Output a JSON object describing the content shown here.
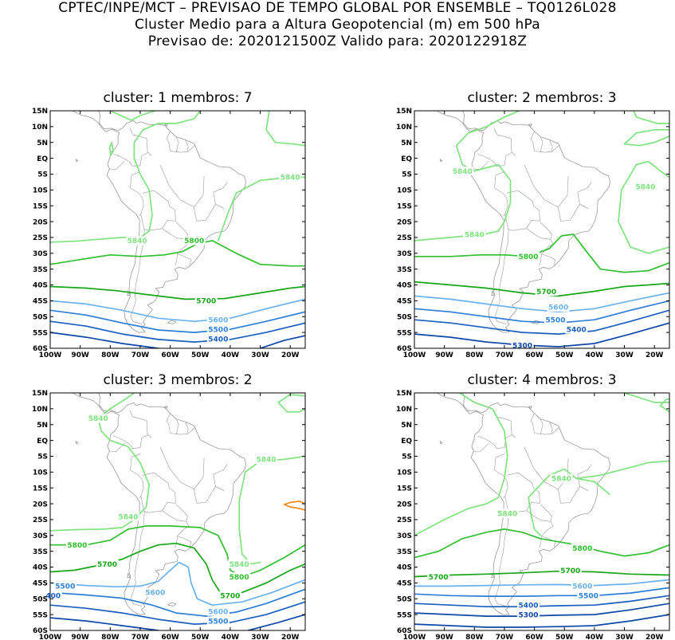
{
  "header": {
    "line1": "CPTEC/INPE/MCT – PREVISAO DE TEMPO GLOBAL POR ENSEMBLE – TQ0126L028",
    "line2": "Cluster Medio para a Altura Geopotencial (m) em 500 hPa",
    "line3": "Previsao de: 2020121500Z   Valido para: 2020122918Z"
  },
  "colors": {
    "c5840": "#7fe37f",
    "c5800": "#30bf30",
    "c5700": "#17a617",
    "c5600": "#6ab2ee",
    "c5500": "#2d7ed6",
    "c5400": "#1a5fc0",
    "c5300": "#0e47a8",
    "c5900": "#f08a1e",
    "land": "#9a9a9a"
  },
  "chart_data": [
    {
      "type": "contour",
      "title": "cluster: 1   membros: 7",
      "x_ticks": [
        "100W",
        "90W",
        "80W",
        "70W",
        "60W",
        "50W",
        "40W",
        "30W",
        "20W"
      ],
      "y_ticks": [
        "15N",
        "10N",
        "5N",
        "EQ",
        "5S",
        "10S",
        "15S",
        "20S",
        "25S",
        "30S",
        "35S",
        "40S",
        "45S",
        "50S",
        "55S",
        "60S"
      ],
      "xlim": [
        -100,
        -15
      ],
      "ylim": [
        -60,
        15
      ],
      "contour_labels": [
        {
          "text": "5840",
          "lon": -20,
          "lat": -6,
          "level": "c5840"
        },
        {
          "text": "5840",
          "lon": -71,
          "lat": -26,
          "level": "c5840"
        },
        {
          "text": "5800",
          "lon": -52,
          "lat": -26,
          "level": "c5800"
        },
        {
          "text": "5700",
          "lon": -48,
          "lat": -45,
          "level": "c5700"
        },
        {
          "text": "5600",
          "lon": -44,
          "lat": -51,
          "level": "c5600"
        },
        {
          "text": "5500",
          "lon": -44,
          "lat": -54,
          "level": "c5500"
        },
        {
          "text": "5400",
          "lon": -44,
          "lat": -57,
          "level": "c5400"
        }
      ]
    },
    {
      "type": "contour",
      "title": "cluster: 2   membros: 3",
      "x_ticks": [
        "100W",
        "90W",
        "80W",
        "70W",
        "60W",
        "50W",
        "40W",
        "30W",
        "20W"
      ],
      "y_ticks": [
        "15N",
        "10N",
        "5N",
        "EQ",
        "5S",
        "10S",
        "15S",
        "20S",
        "25S",
        "30S",
        "35S",
        "40S",
        "45S",
        "50S",
        "55S",
        "60S"
      ],
      "xlim": [
        -100,
        -15
      ],
      "ylim": [
        -60,
        15
      ],
      "contour_labels": [
        {
          "text": "5840",
          "lon": -84,
          "lat": -4,
          "level": "c5840"
        },
        {
          "text": "5840",
          "lon": -23,
          "lat": -9,
          "level": "c5840"
        },
        {
          "text": "5840",
          "lon": -80,
          "lat": -24,
          "level": "c5840"
        },
        {
          "text": "5800",
          "lon": -62,
          "lat": -31,
          "level": "c5800"
        },
        {
          "text": "5700",
          "lon": -56,
          "lat": -42,
          "level": "c5700"
        },
        {
          "text": "5600",
          "lon": -52,
          "lat": -47,
          "level": "c5600"
        },
        {
          "text": "5500",
          "lon": -53,
          "lat": -51,
          "level": "c5500"
        },
        {
          "text": "5400",
          "lon": -46,
          "lat": -54,
          "level": "c5400"
        },
        {
          "text": "5300",
          "lon": -64,
          "lat": -59,
          "level": "c5300"
        }
      ]
    },
    {
      "type": "contour",
      "title": "cluster: 3   membros: 2",
      "x_ticks": [
        "100W",
        "90W",
        "80W",
        "70W",
        "60W",
        "50W",
        "40W",
        "30W",
        "20W"
      ],
      "y_ticks": [
        "15N",
        "10N",
        "5N",
        "EQ",
        "5S",
        "10S",
        "15S",
        "20S",
        "25S",
        "30S",
        "35S",
        "40S",
        "45S",
        "50S",
        "55S",
        "60S"
      ],
      "xlim": [
        -100,
        -15
      ],
      "ylim": [
        -60,
        15
      ],
      "contour_labels": [
        {
          "text": "5840",
          "lon": -84,
          "lat": 7,
          "level": "c5840"
        },
        {
          "text": "5840",
          "lon": -28,
          "lat": -6,
          "level": "c5840"
        },
        {
          "text": "5840",
          "lon": -74,
          "lat": -24,
          "level": "c5840"
        },
        {
          "text": "5800",
          "lon": -91,
          "lat": -33,
          "level": "c5800"
        },
        {
          "text": "5840",
          "lon": -37,
          "lat": -39,
          "level": "c5840"
        },
        {
          "text": "5700",
          "lon": -81,
          "lat": -39,
          "level": "c5700"
        },
        {
          "text": "5800",
          "lon": -37,
          "lat": -43,
          "level": "c5800"
        },
        {
          "text": "5500",
          "lon": -95,
          "lat": -46,
          "level": "c5500"
        },
        {
          "text": "5600",
          "lon": -65,
          "lat": -48,
          "level": "c5600"
        },
        {
          "text": "400",
          "lon": -99,
          "lat": -49,
          "level": "c5400"
        },
        {
          "text": "5700",
          "lon": -40,
          "lat": -49,
          "level": "c5700"
        },
        {
          "text": "5600",
          "lon": -44,
          "lat": -54,
          "level": "c5600"
        },
        {
          "text": "5500",
          "lon": -44,
          "lat": -57,
          "level": "c5500"
        }
      ]
    },
    {
      "type": "contour",
      "title": "cluster: 4   membros: 3",
      "x_ticks": [
        "100W",
        "90W",
        "80W",
        "70W",
        "60W",
        "50W",
        "40W",
        "30W",
        "20W"
      ],
      "y_ticks": [
        "15N",
        "10N",
        "5N",
        "EQ",
        "5S",
        "10S",
        "15S",
        "20S",
        "25S",
        "30S",
        "35S",
        "40S",
        "45S",
        "50S",
        "55S",
        "60S"
      ],
      "xlim": [
        -100,
        -15
      ],
      "ylim": [
        -60,
        15
      ],
      "contour_labels": [
        {
          "text": "5840",
          "lon": -51,
          "lat": -12,
          "level": "c5840"
        },
        {
          "text": "5840",
          "lon": -69,
          "lat": -23,
          "level": "c5840"
        },
        {
          "text": "5800",
          "lon": -44,
          "lat": -34,
          "level": "c5800"
        },
        {
          "text": "5700",
          "lon": -48,
          "lat": -41,
          "level": "c5700"
        },
        {
          "text": "5700",
          "lon": -92,
          "lat": -43,
          "level": "c5700"
        },
        {
          "text": "5600",
          "lon": -44,
          "lat": -46,
          "level": "c5600"
        },
        {
          "text": "5500",
          "lon": -42,
          "lat": -49,
          "level": "c5500"
        },
        {
          "text": "5400",
          "lon": -62,
          "lat": -52,
          "level": "c5400"
        },
        {
          "text": "5300",
          "lon": -62,
          "lat": -55,
          "level": "c5300"
        }
      ]
    }
  ]
}
